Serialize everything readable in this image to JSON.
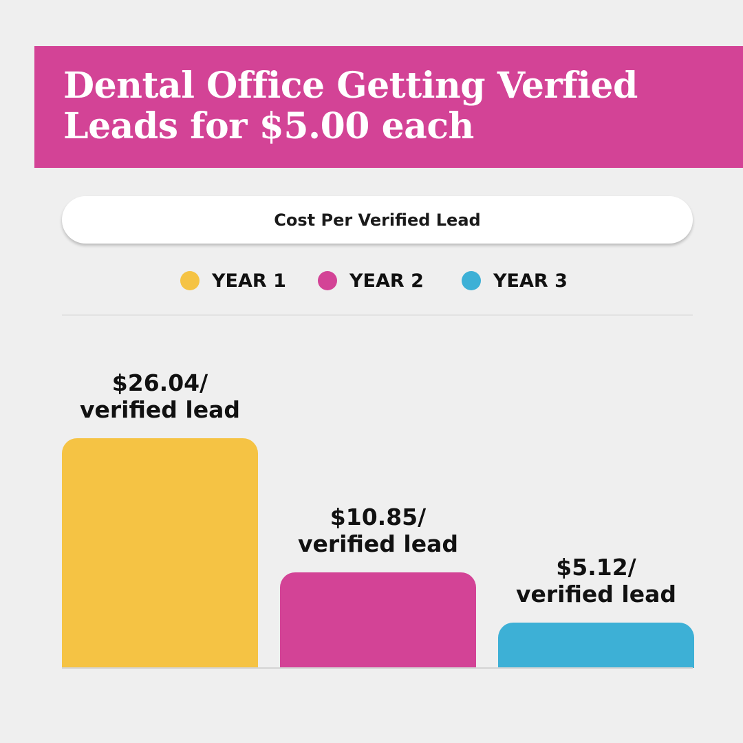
{
  "header": {
    "title_line1": "Dental Office Getting Verfied",
    "title_line2": "Leads for $5.00 each",
    "bg_color": "#d34396"
  },
  "chart_data": {
    "type": "bar",
    "title": "Cost Per Verified Lead",
    "categories": [
      "YEAR 1",
      "YEAR 2",
      "YEAR 3"
    ],
    "values": [
      26.04,
      10.85,
      5.12
    ],
    "value_labels": [
      {
        "value": "$26.04/",
        "unit": "verified lead"
      },
      {
        "value": "$10.85/",
        "unit": "verified lead"
      },
      {
        "value": "$5.12/",
        "unit": "verified lead"
      }
    ],
    "colors": [
      "#f5c344",
      "#d34396",
      "#3db0d6"
    ],
    "legend_position": "top",
    "grid": false,
    "ylim": [
      0,
      26.04
    ]
  }
}
